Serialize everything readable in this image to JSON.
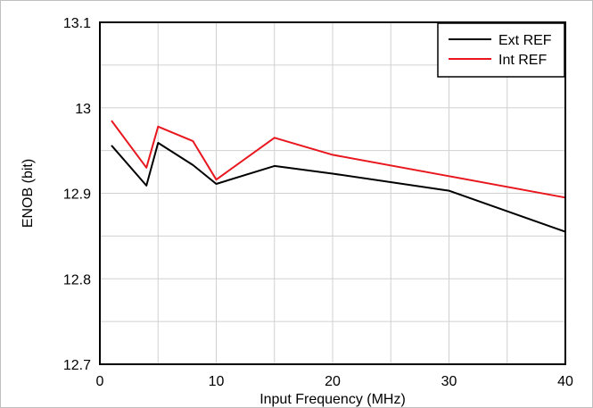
{
  "chart_data": {
    "type": "line",
    "title": "",
    "xlabel": "Input Frequency (MHz)",
    "ylabel": "ENOB (bit)",
    "xlim": [
      0,
      40
    ],
    "ylim": [
      12.7,
      13.1
    ],
    "x_ticks": [
      0,
      10,
      20,
      30,
      40
    ],
    "x_tick_labels": [
      "0",
      "10",
      "20",
      "30",
      "40"
    ],
    "y_ticks": [
      12.7,
      12.8,
      12.9,
      13.0,
      13.1
    ],
    "y_tick_labels": [
      "12.7",
      "12.8",
      "12.9",
      "13",
      "13.1"
    ],
    "grid": true,
    "legend_position": "top-right",
    "series": [
      {
        "name": "Ext REF",
        "color": "#000000",
        "x": [
          1,
          4,
          5,
          8,
          10,
          15,
          20,
          30,
          40
        ],
        "y": [
          12.956,
          12.909,
          12.959,
          12.933,
          12.911,
          12.932,
          12.923,
          12.903,
          12.855
        ]
      },
      {
        "name": "Int REF",
        "color": "#e8171e",
        "x": [
          1,
          4,
          5,
          8,
          10,
          15,
          20,
          30,
          40
        ],
        "y": [
          12.985,
          12.93,
          12.978,
          12.961,
          12.916,
          12.965,
          12.945,
          12.92,
          12.895
        ]
      }
    ]
  }
}
